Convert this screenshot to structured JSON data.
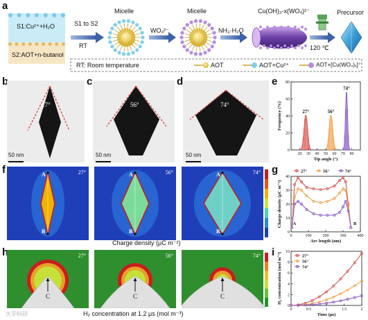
{
  "panel_a": {
    "letter": "a",
    "s1_label": "S1:Cu²⁺+H₂O",
    "s2_label": "S2:AOT+n-butanol",
    "arrow1_top": "S1 to S2",
    "arrow1_bottom": "RT",
    "micelle1_label": "Micelle",
    "arrow2_label": "WO₄²⁻",
    "micelle2_label": "Micelle",
    "arrow3_label": "NH₃·H₂O",
    "rod_label": "Cu(OH)₂-x(WO₄)²⁻",
    "arrow4_label": "120 ℃",
    "precursor_label": "Precursor",
    "legend_rt": "RT: Room temperature",
    "legend_aot": "AOT",
    "legend_aot_cu": "AOT+Cu²⁺",
    "legend_aot_cuwo": "AOT+[Cu(WO₄)ₓ]⁺"
  },
  "panel_b": {
    "letter": "b",
    "angle": "27°",
    "scale": "50 nm"
  },
  "panel_c": {
    "letter": "c",
    "angle": "56°",
    "scale": "50 nm"
  },
  "panel_d": {
    "letter": "d",
    "angle": "74°",
    "scale": "50 nm"
  },
  "panel_f": {
    "letter": "f",
    "angles": [
      "27°",
      "56°",
      "74°"
    ],
    "point_a": "A",
    "point_b": "B",
    "caption": "Charge density (μC m⁻²)"
  },
  "panel_h": {
    "letter": "h",
    "angles": [
      "27°",
      "56°",
      "74°"
    ],
    "point_c": "C",
    "caption": "H₂ concentration at 1.2 μs (mol m⁻³)"
  },
  "panel_g_letter": "g",
  "panel_e_letter": "e",
  "panel_i_letter": "i",
  "watermark": "大学科研",
  "colors": {
    "s1_blue": "#8fd6ec",
    "s2_tan": "#f3dcb0",
    "arrow_blue": "#4a6fb0",
    "c27": "#d9534f",
    "c56": "#f0a24a",
    "c74": "#8a5cc8"
  },
  "chart_data": [
    {
      "type": "area",
      "panel": "e",
      "xlabel": "Tip angle (°)",
      "ylabel": "Frequency (%)",
      "xlim": [
        10,
        90
      ],
      "ylim": [
        0,
        80
      ],
      "xticks": [
        20,
        30,
        40,
        50,
        60,
        70,
        80
      ],
      "yticks": [
        0,
        20,
        40,
        60,
        80
      ],
      "series": [
        {
          "name": "27°",
          "center": 27,
          "sigma": 2.0,
          "peak": 41,
          "color": "#d9534f"
        },
        {
          "name": "56°",
          "center": 56,
          "sigma": 2.0,
          "peak": 41,
          "color": "#f0a24a"
        },
        {
          "name": "74°",
          "center": 74,
          "sigma": 1.2,
          "peak": 68,
          "color": "#8a5cc8"
        }
      ]
    },
    {
      "type": "line",
      "panel": "g",
      "xlabel": "Arc length (nm)",
      "ylabel": "Charge density (μC m⁻²)",
      "xlim": [
        0,
        400
      ],
      "ylim": [
        0,
        40
      ],
      "xticks": [
        0,
        100,
        200,
        300,
        400
      ],
      "yticks": [
        0,
        10,
        20,
        30,
        40
      ],
      "point_labels": [
        "A",
        "B"
      ],
      "series": [
        {
          "name": "27°",
          "color": "#d9534f",
          "x": [
            5,
            20,
            40,
            60,
            90,
            130,
            170,
            210,
            250,
            280,
            300,
            315,
            330,
            345
          ],
          "y": [
            3,
            34,
            39,
            36,
            32,
            31,
            30.5,
            31,
            33,
            37,
            39,
            36,
            20,
            3
          ]
        },
        {
          "name": "56°",
          "color": "#f0a24a",
          "x": [
            5,
            20,
            40,
            60,
            90,
            130,
            170,
            210,
            250,
            280,
            300,
            315,
            330,
            345
          ],
          "y": [
            3,
            25,
            31,
            30,
            26,
            22,
            21,
            22,
            24,
            28,
            31,
            30,
            18,
            3
          ]
        },
        {
          "name": "74°",
          "color": "#8a5cc8",
          "x": [
            5,
            20,
            40,
            60,
            90,
            130,
            170,
            210,
            250,
            280,
            300,
            315,
            330,
            345
          ],
          "y": [
            3,
            20,
            22,
            20,
            16,
            13,
            12,
            12,
            12,
            14,
            18,
            22,
            15,
            3
          ]
        }
      ]
    },
    {
      "type": "line",
      "panel": "i",
      "xlabel": "Time (μs)",
      "ylabel": "H₂ concentration (mol m⁻³)",
      "xlim": [
        0,
        2.0
      ],
      "ylim": [
        0,
        10
      ],
      "xticks": [
        0.0,
        0.5,
        1.0,
        1.5,
        2.0
      ],
      "yticks": [
        0,
        2,
        4,
        6,
        8,
        10
      ],
      "series": [
        {
          "name": "27°",
          "color": "#d9534f",
          "x": [
            0,
            0.2,
            0.4,
            0.6,
            0.8,
            1.0,
            1.2,
            1.4,
            1.6,
            1.8,
            2.0
          ],
          "y": [
            0,
            0.1,
            0.4,
            0.9,
            1.6,
            2.5,
            3.6,
            4.9,
            6.3,
            7.9,
            9.6
          ]
        },
        {
          "name": "56°",
          "color": "#f0a24a",
          "x": [
            0,
            0.2,
            0.4,
            0.6,
            0.8,
            1.0,
            1.2,
            1.4,
            1.6,
            1.8,
            2.0
          ],
          "y": [
            0,
            0.04,
            0.15,
            0.35,
            0.65,
            1.05,
            1.55,
            2.15,
            2.85,
            3.65,
            4.5
          ]
        },
        {
          "name": "74°",
          "color": "#8a5cc8",
          "x": [
            0,
            0.2,
            0.4,
            0.6,
            0.8,
            1.0,
            1.2,
            1.4,
            1.6,
            1.8,
            2.0
          ],
          "y": [
            0,
            0.02,
            0.06,
            0.14,
            0.26,
            0.42,
            0.62,
            0.86,
            1.14,
            1.46,
            1.8
          ]
        }
      ]
    }
  ]
}
